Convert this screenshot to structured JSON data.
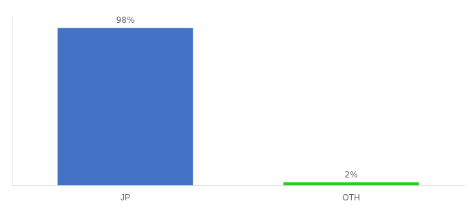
{
  "chart_data": {
    "type": "bar",
    "categories": [
      "JP",
      "OTH"
    ],
    "values": [
      98,
      2
    ],
    "value_labels": [
      "98%",
      "2%"
    ],
    "data_labels": true,
    "colors": [
      "#4472C4",
      "#22CC22"
    ],
    "ylim": [
      0,
      105
    ],
    "yticks": [],
    "grid": false,
    "tick_labels": "x"
  }
}
